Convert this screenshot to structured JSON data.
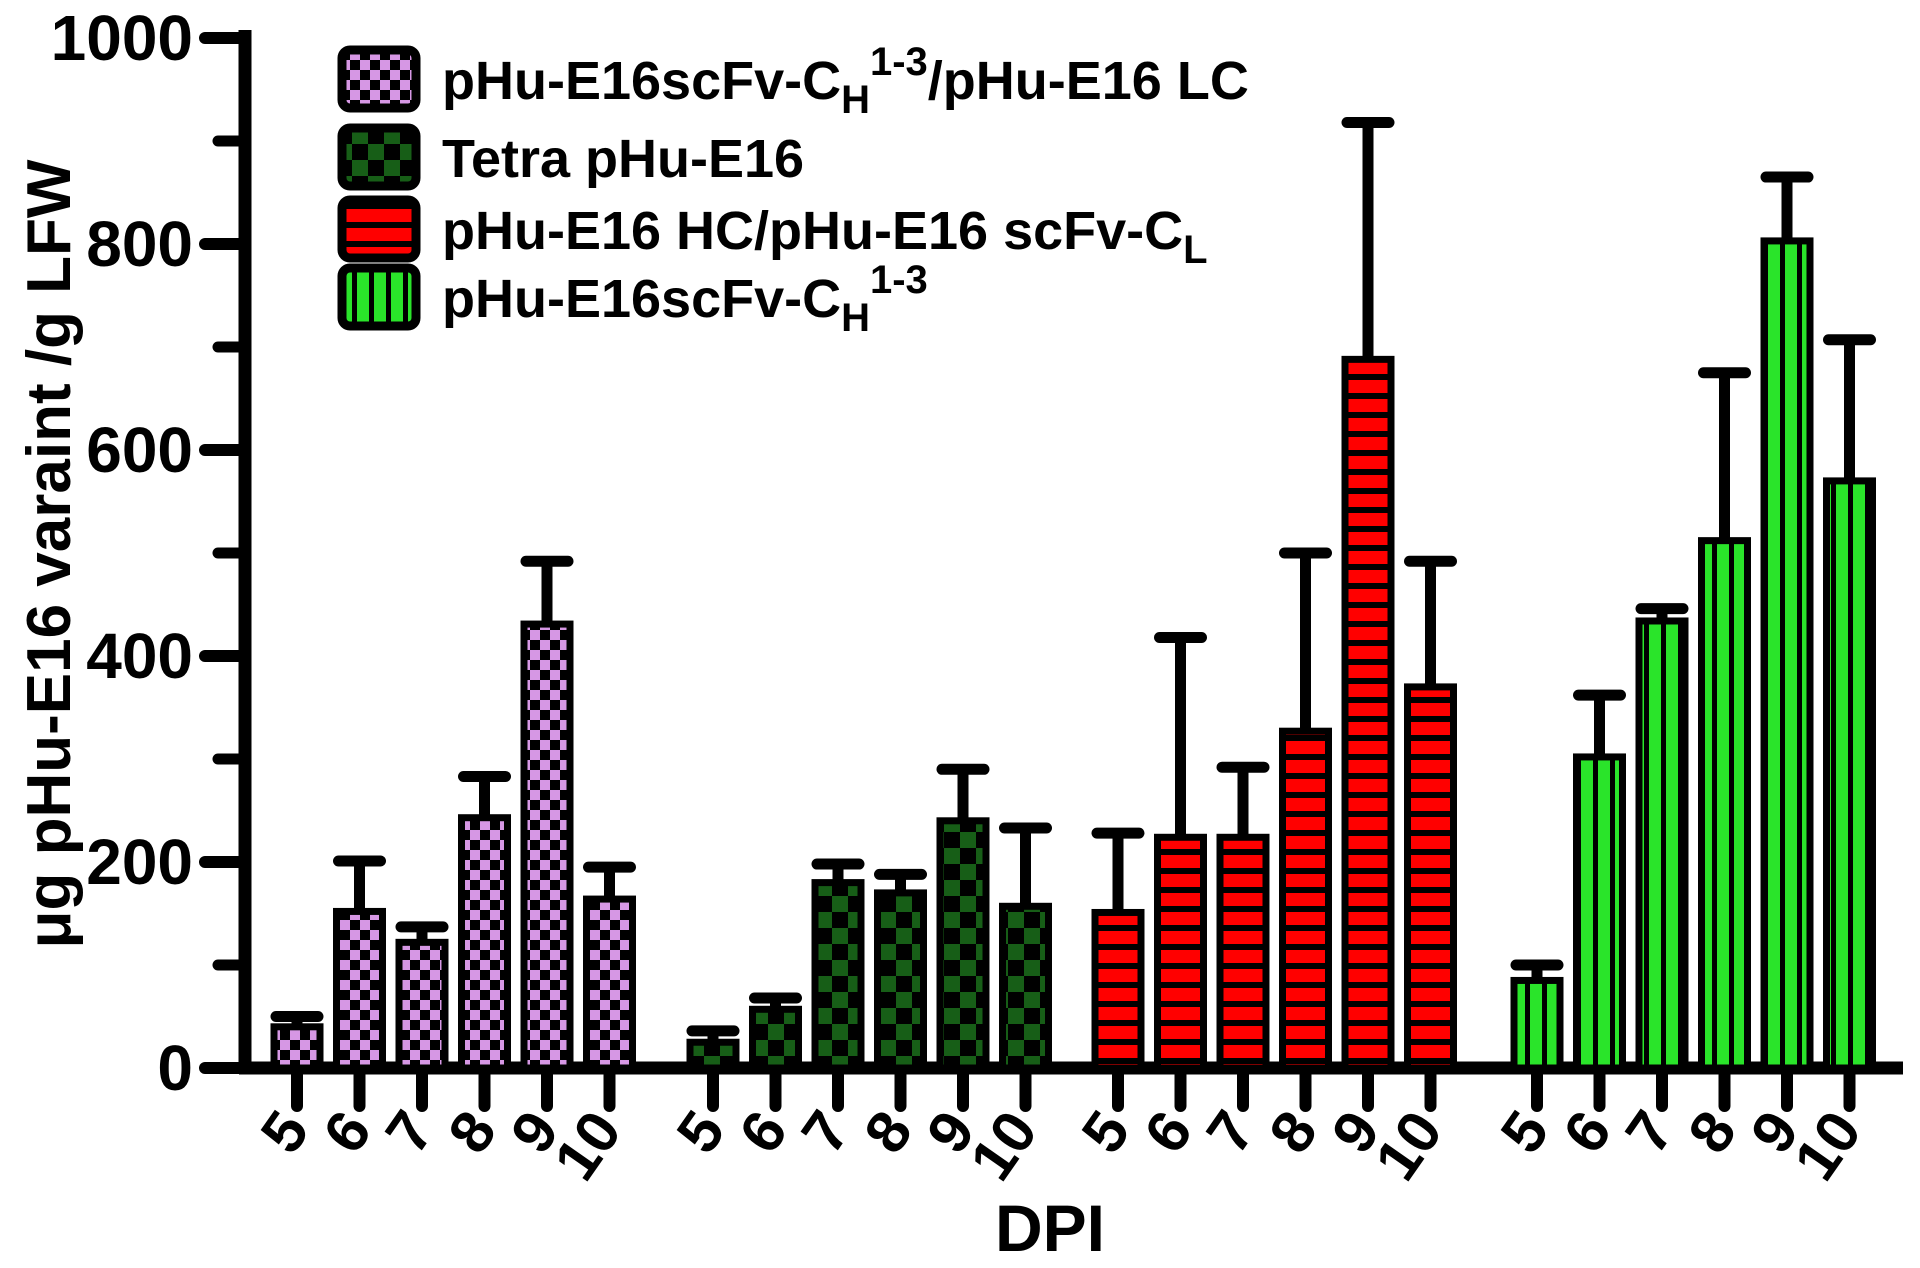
{
  "chart_data": {
    "type": "bar",
    "title": "",
    "xlabel": "DPI",
    "ylabel": "μg pHu-E16 varaint /g LFW",
    "ylim": [
      0,
      1000
    ],
    "ytick_major": [
      0,
      200,
      400,
      600,
      800,
      1000
    ],
    "ytick_minor": [
      100,
      300,
      500,
      700,
      900
    ],
    "grid": false,
    "legend_position": "top-left-inside",
    "error_bars": "sd-upper-only",
    "categories": [
      "5",
      "6",
      "7",
      "8",
      "9",
      "10"
    ],
    "series": [
      {
        "name": "pHu-E16scFv-CH1-3/pHu-E16 LC",
        "name_parts": [
          {
            "text": "pHu-E16scFv-C"
          },
          {
            "text": "H",
            "style": "sub"
          },
          {
            "text": "1-3",
            "style": "sup"
          },
          {
            "text": "/pHu-E16 LC"
          }
        ],
        "pattern": "checker-small",
        "color": "#D697E4",
        "values": [
          40,
          152,
          122,
          243,
          431,
          164
        ],
        "error_top": [
          50,
          201,
          137,
          283,
          492,
          195
        ]
      },
      {
        "name": "Tetra pHu-E16",
        "name_parts": [
          {
            "text": "Tetra pHu-E16"
          }
        ],
        "pattern": "checker-large",
        "color": "#175E17",
        "values": [
          25,
          57,
          180,
          170,
          240,
          157
        ],
        "error_top": [
          36,
          68,
          198,
          188,
          290,
          233
        ]
      },
      {
        "name": "pHu-E16 HC/pHu-E16 scFv-CL",
        "name_parts": [
          {
            "text": "pHu-E16 HC/pHu-E16 scFv-C"
          },
          {
            "text": "L",
            "style": "sub"
          }
        ],
        "pattern": "stripes-horizontal",
        "color": "#FF0000",
        "values": [
          151,
          224,
          224,
          327,
          688,
          370
        ],
        "error_top": [
          228,
          418,
          292,
          500,
          918,
          492
        ]
      },
      {
        "name": "pHu-E16scFv-CH1-3",
        "name_parts": [
          {
            "text": "pHu-E16scFv-C"
          },
          {
            "text": "H",
            "style": "sub"
          },
          {
            "text": "1-3",
            "style": "sup"
          }
        ],
        "pattern": "stripes-vertical",
        "color": "#2AE42A",
        "values": [
          85,
          302,
          434,
          512,
          803,
          570
        ],
        "error_top": [
          100,
          362,
          446,
          675,
          865,
          707
        ]
      }
    ],
    "axis_color": "#000000",
    "bar_outline_color": "#000000",
    "error_bar_color": "#000000"
  }
}
